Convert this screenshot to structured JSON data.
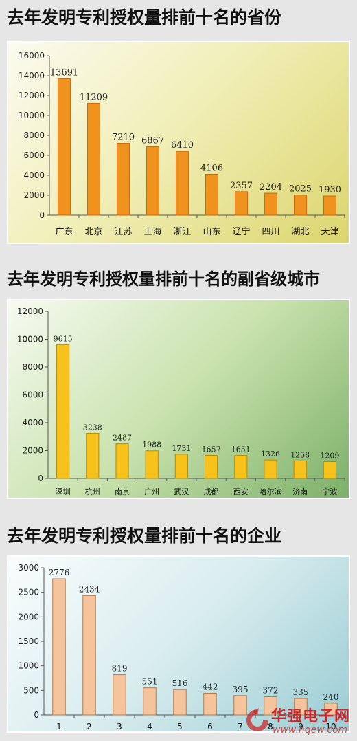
{
  "titles": {
    "provinces": "去年发明专利授权量排前十名的省份",
    "cities": "去年发明专利授权量排前十名的副省级城市",
    "companies": "去年发明专利授权量排前十名的企业"
  },
  "watermark": {
    "text": "华强电子网",
    "url": "www.hqew.com"
  },
  "chart_data": [
    {
      "type": "bar",
      "title": "去年发明专利授权量排前十名的省份",
      "categories": [
        "广东",
        "北京",
        "江苏",
        "上海",
        "浙江",
        "山东",
        "辽宁",
        "四川",
        "湖北",
        "天津"
      ],
      "values": [
        13691,
        11209,
        7210,
        6867,
        6410,
        4106,
        2357,
        2204,
        2025,
        1930
      ],
      "ylim": [
        0,
        16000
      ],
      "yticks": [
        0,
        2000,
        4000,
        6000,
        8000,
        10000,
        12000,
        14000,
        16000
      ],
      "grid": false,
      "bar_color": "#f0921e",
      "bar_edge": "#c96a10"
    },
    {
      "type": "bar",
      "title": "去年发明专利授权量排前十名的副省级城市",
      "categories": [
        "深圳",
        "杭州",
        "南京",
        "广州",
        "武汉",
        "成都",
        "西安",
        "哈尔滨",
        "济南",
        "宁波"
      ],
      "values": [
        9615,
        3238,
        2487,
        1988,
        1731,
        1657,
        1651,
        1326,
        1258,
        1209
      ],
      "ylim": [
        0,
        12000
      ],
      "yticks": [
        0,
        2000,
        4000,
        6000,
        8000,
        10000,
        12000
      ],
      "grid": false,
      "bar_color": "#f7c21b",
      "bar_edge": "#b88a06"
    },
    {
      "type": "bar",
      "title": "去年发明专利授权量排前十名的企业",
      "categories": [
        "1",
        "2",
        "3",
        "4",
        "5",
        "6",
        "7",
        "8",
        "9",
        "10"
      ],
      "values": [
        2776,
        2434,
        819,
        551,
        516,
        442,
        395,
        372,
        335,
        240
      ],
      "ylim": [
        0,
        3000
      ],
      "yticks": [
        0,
        500,
        1000,
        1500,
        2000,
        2500,
        3000
      ],
      "grid": false,
      "bar_color": "#f6c49c",
      "bar_edge": "#b37a4c"
    }
  ]
}
